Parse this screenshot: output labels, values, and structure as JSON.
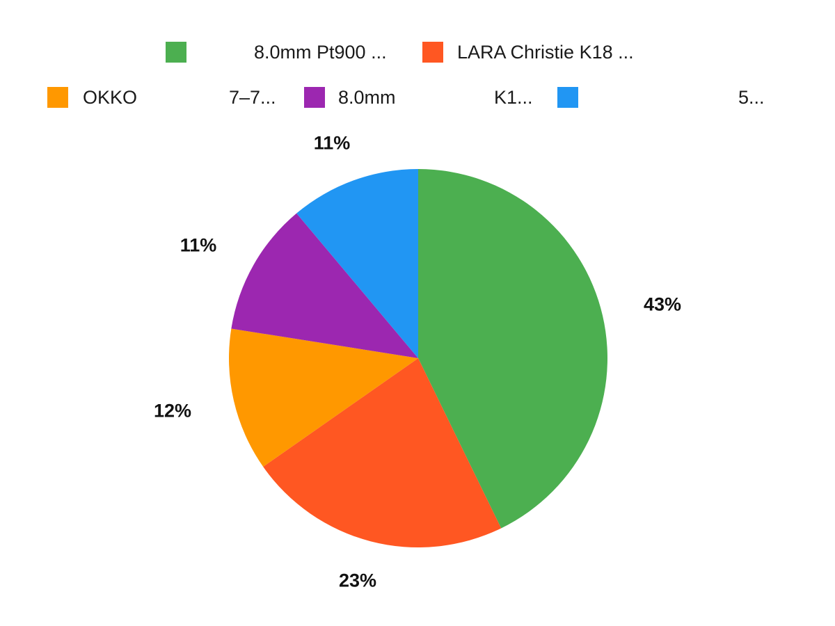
{
  "chart_data": {
    "type": "pie",
    "title": "",
    "categories": [
      "8.0mm Pt900 ...",
      "LARA Christie K18 ...",
      "OKKO 7-7...",
      "8.0mm K1...",
      "5..."
    ],
    "values": [
      43,
      23,
      12,
      11,
      11
    ],
    "value_labels": [
      "43%",
      "23%",
      "12%",
      "11%",
      "11%"
    ],
    "colors": [
      "#4CAF50",
      "#FF5722",
      "#FF9800",
      "#9C27B0",
      "#2196F3"
    ],
    "start_angle_deg": 0,
    "direction": "clockwise",
    "legend_position": "top"
  },
  "legend": {
    "row1": [
      {
        "label_a": "",
        "label_b": "8.0mm Pt900 ...",
        "color": "#4CAF50"
      },
      {
        "label_a": "LARA Christie K18 ...",
        "label_b": "",
        "color": "#FF5722"
      }
    ],
    "row2": [
      {
        "label_a": "OKKO",
        "label_b": "7–7...",
        "color": "#FF9800"
      },
      {
        "label_a": "8.0mm",
        "label_b": "K1...",
        "color": "#9C27B0"
      },
      {
        "label_a": "",
        "label_b": "5...",
        "color": "#2196F3"
      }
    ]
  },
  "labels": {
    "green": "43%",
    "red": "23%",
    "orange": "12%",
    "purple": "11%",
    "blue": "11%"
  }
}
